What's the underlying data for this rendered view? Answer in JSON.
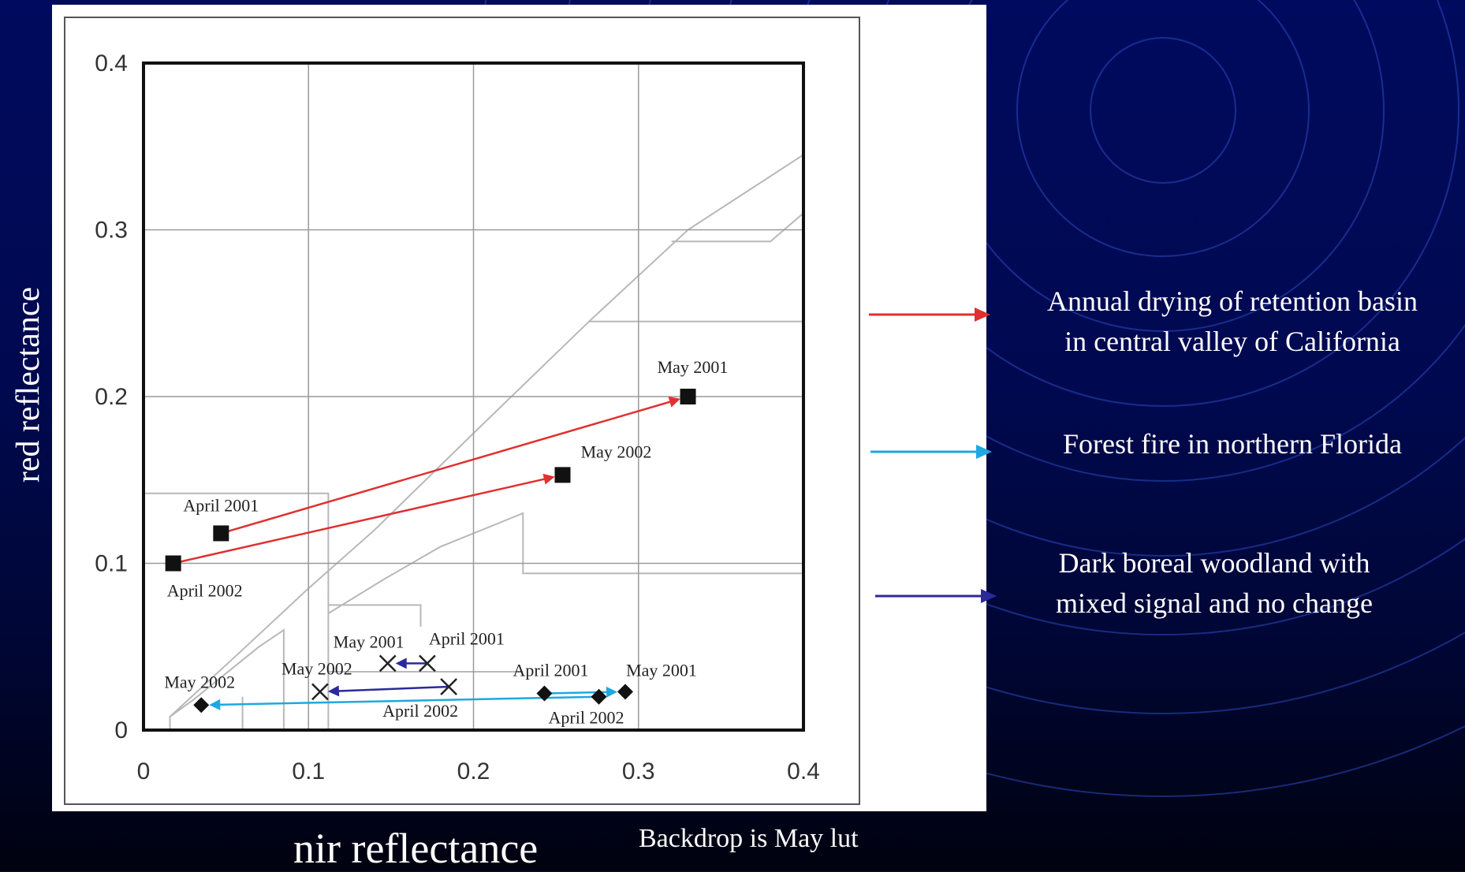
{
  "chart_data": {
    "type": "scatter",
    "xlabel": "nir reflectance",
    "ylabel": "red reflectance",
    "xlim": [
      0,
      0.4
    ],
    "ylim": [
      0,
      0.4
    ],
    "x_ticks": [
      "0",
      "0.1",
      "0.2",
      "0.3",
      "0.4"
    ],
    "y_ticks": [
      "0",
      "0.1",
      "0.2",
      "0.3",
      "0.4"
    ],
    "grid": true,
    "annotation": "Backdrop is May lut",
    "series": [
      {
        "name": "Annual drying of retention basin in central valley of California",
        "color": "#e03030",
        "marker": "square",
        "points": [
          {
            "x": 0.047,
            "y": 0.118,
            "label": "April 2001"
          },
          {
            "x": 0.33,
            "y": 0.2,
            "label": "May 2001"
          },
          {
            "x": 0.018,
            "y": 0.1,
            "label": "April 2002"
          },
          {
            "x": 0.254,
            "y": 0.153,
            "label": "May 2002"
          }
        ]
      },
      {
        "name": "Forest fire in northern Florida",
        "color": "#1ea8e0",
        "marker": "diamond",
        "points": [
          {
            "x": 0.243,
            "y": 0.022,
            "label": "April 2001"
          },
          {
            "x": 0.292,
            "y": 0.023,
            "label": "May 2001"
          },
          {
            "x": 0.276,
            "y": 0.02,
            "label": "April 2002"
          },
          {
            "x": 0.035,
            "y": 0.015,
            "label": "May 2002"
          }
        ]
      },
      {
        "name": "Dark boreal woodland with mixed signal and no change",
        "color": "#2b2a9a",
        "marker": "x",
        "points": [
          {
            "x": 0.172,
            "y": 0.04,
            "label": "April 2001"
          },
          {
            "x": 0.148,
            "y": 0.04,
            "label": "May 2001"
          },
          {
            "x": 0.185,
            "y": 0.026,
            "label": "April 2002"
          },
          {
            "x": 0.107,
            "y": 0.023,
            "label": "May 2002"
          }
        ]
      }
    ]
  },
  "legend": [
    {
      "lines": [
        "Annual drying of retention basin",
        "in central valley of California"
      ],
      "color": "#e03030"
    },
    {
      "lines": [
        "Forest fire in northern Florida"
      ],
      "color": "#1ea8e0"
    },
    {
      "lines": [
        "Dark boreal woodland with",
        "mixed signal and no change"
      ],
      "color": "#2b2a9a"
    }
  ]
}
